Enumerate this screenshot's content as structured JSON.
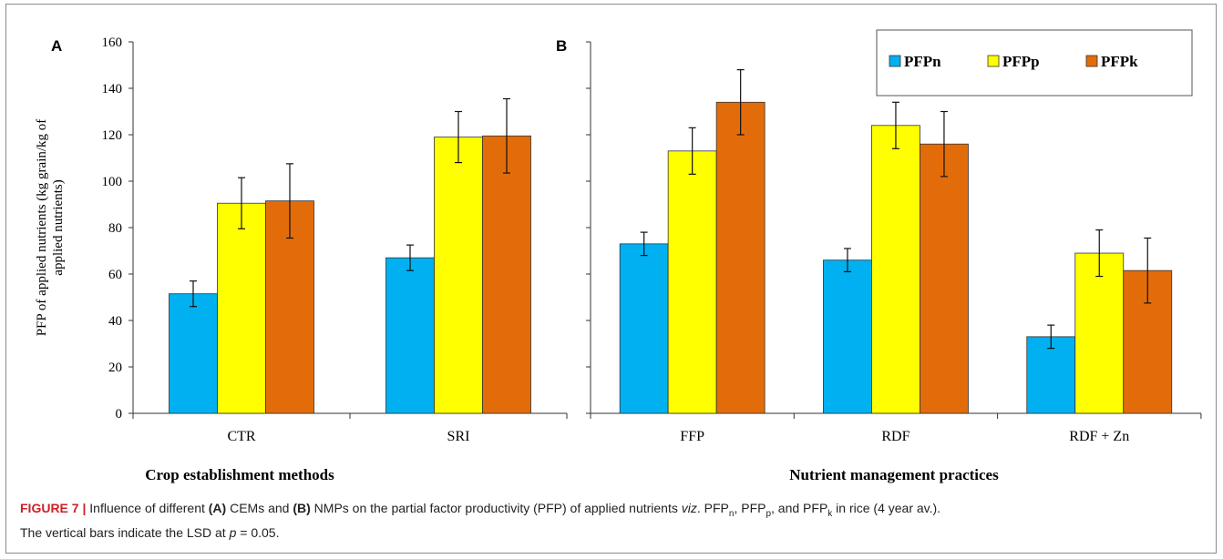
{
  "figure": {
    "caption": {
      "label": "FIGURE 7 |",
      "t1": " Influence of different ",
      "a": "(A)",
      "t2": " CEMs and ",
      "b": "(B)",
      "t3": " NMPs on the partial factor productivity (PFP) of applied nutrients ",
      "viz": "viz",
      "t4": ". PFP",
      "sub_n": "n",
      "t5": ", PFP",
      "sub_p": "p",
      "t6": ", and PFP",
      "sub_k": "k",
      "t7": " in rice (4 year av.).",
      "line2a": "The vertical bars indicate the LSD at ",
      "p": "p",
      "line2b": " = 0.05."
    }
  },
  "chart_data": [
    {
      "type": "bar",
      "panel_label": "A",
      "categories": [
        "CTR",
        "SRI"
      ],
      "xlabel": "Crop establishment methods",
      "ylabel": "PFP of applied nutrients (kg grain/kg of applied nutrients)",
      "ylim": [
        0,
        160
      ],
      "yticks": [
        0,
        20,
        40,
        60,
        80,
        100,
        120,
        140,
        160
      ],
      "series": [
        {
          "name": "PFPn",
          "color": "#00b0f0",
          "values": [
            51.5,
            67
          ],
          "error": [
            5.5,
            5.5
          ]
        },
        {
          "name": "PFPp",
          "color": "#ffff00",
          "values": [
            90.5,
            119
          ],
          "error": [
            11,
            11
          ]
        },
        {
          "name": "PFPk",
          "color": "#e36c0a",
          "values": [
            91.5,
            119.5
          ],
          "error": [
            16,
            16
          ]
        }
      ]
    },
    {
      "type": "bar",
      "panel_label": "B",
      "categories": [
        "FFP",
        "RDF",
        "RDF + Zn"
      ],
      "xlabel": "Nutrient management practices",
      "ylim": [
        0,
        160
      ],
      "legend_position": "top-right",
      "series": [
        {
          "name": "PFPn",
          "color": "#00b0f0",
          "values": [
            73,
            66,
            33
          ],
          "error": [
            5,
            5,
            5
          ]
        },
        {
          "name": "PFPp",
          "color": "#ffff00",
          "values": [
            113,
            124,
            69
          ],
          "error": [
            10,
            10,
            10
          ]
        },
        {
          "name": "PFPk",
          "color": "#e36c0a",
          "values": [
            134,
            116,
            61.5
          ],
          "error": [
            14,
            14,
            14
          ]
        }
      ]
    }
  ]
}
